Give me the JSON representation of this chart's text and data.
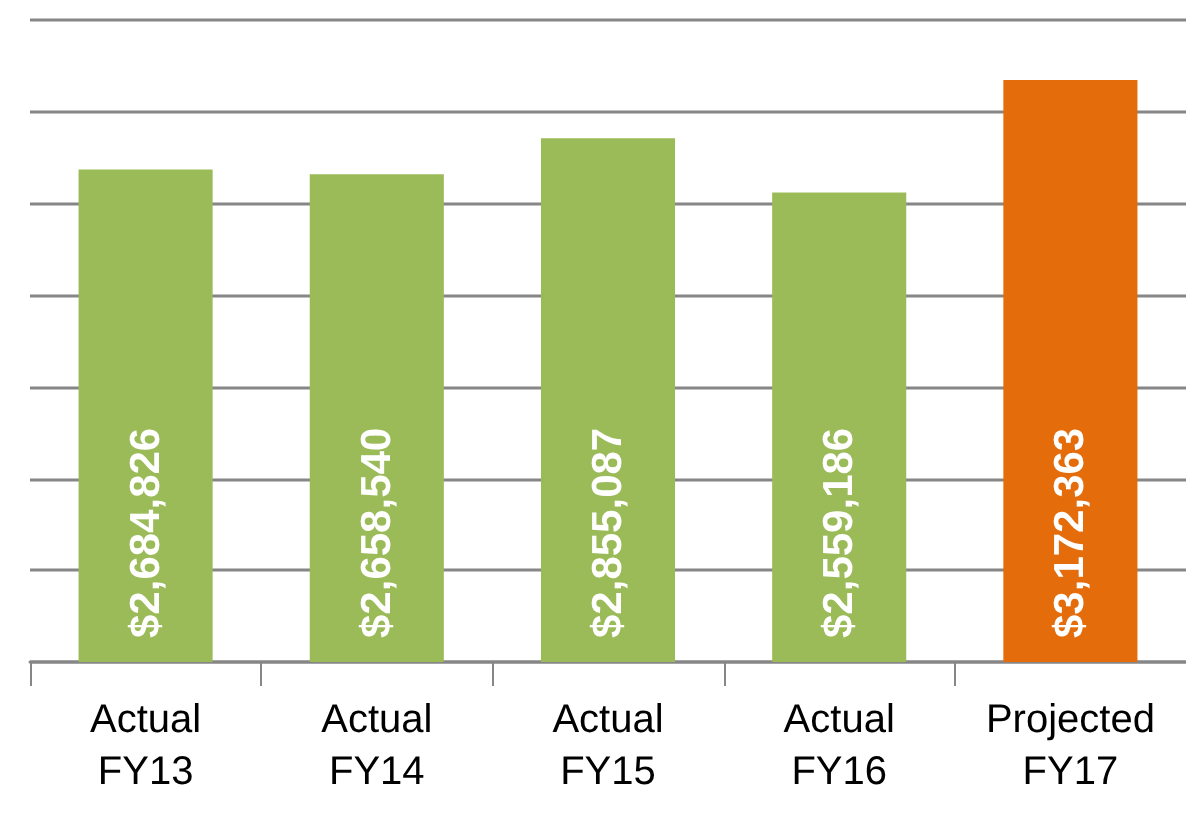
{
  "chart_data": {
    "type": "bar",
    "categories": [
      "Actual\nFY13",
      "Actual\nFY14",
      "Actual\nFY15",
      "Actual\nFY16",
      "Projected\nFY17"
    ],
    "values": [
      2684826,
      2658540,
      2855087,
      2559186,
      3172363
    ],
    "colors": [
      "#9bbb59",
      "#9bbb59",
      "#9bbb59",
      "#9bbb59",
      "#e46c0a"
    ],
    "value_labels": [
      "$2,684,826",
      "$2,658,540",
      "$2,855,087",
      "$2,559,186",
      "$3,172,363"
    ],
    "ylim": [
      0,
      3500000
    ],
    "yticks": [
      {
        "value": 0,
        "label": null
      },
      {
        "value": 500000,
        "label": null
      },
      {
        "value": 1000000,
        "label": null
      },
      {
        "value": 1500000,
        "label": null
      },
      {
        "value": 2000000,
        "label": null
      },
      {
        "value": 2500000,
        "label": null
      },
      {
        "value": 3000000,
        "label": null
      },
      {
        "value": 3500000,
        "label": null
      }
    ],
    "tick_labels": "x",
    "grid": "y"
  }
}
